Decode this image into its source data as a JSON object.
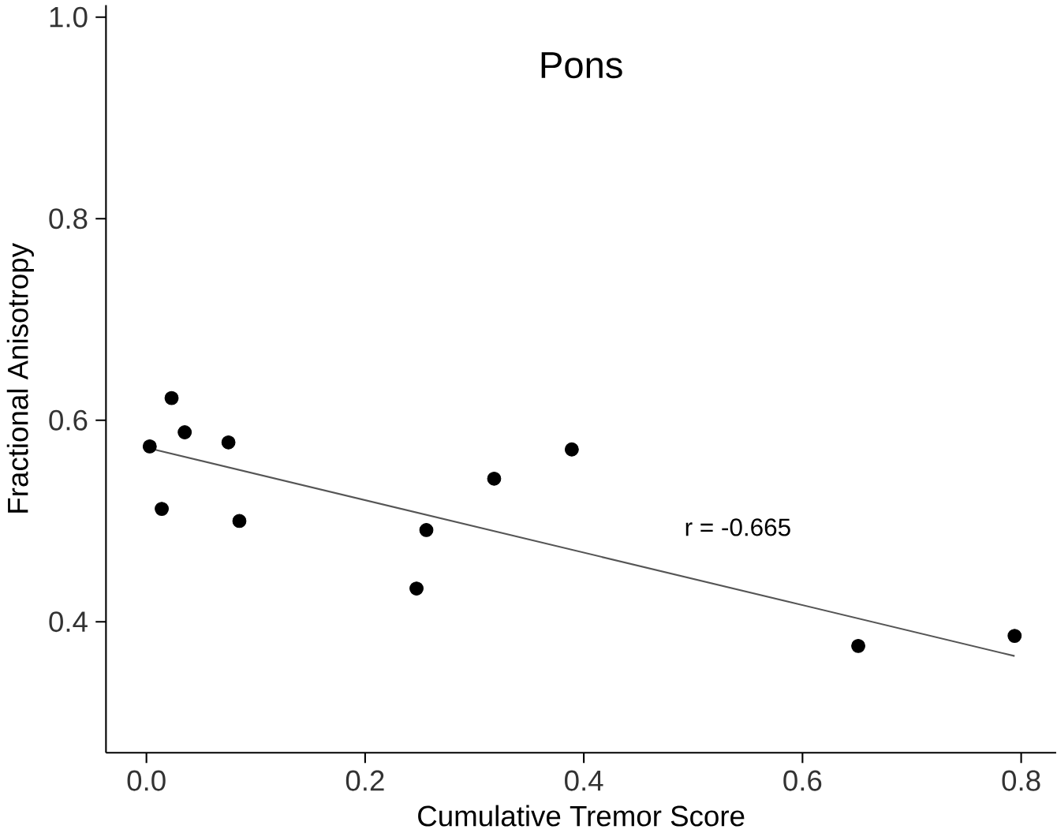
{
  "chart_data": {
    "type": "scatter",
    "title": "Pons",
    "xlabel": "Cumulative Tremor Score",
    "ylabel": "Fractional Anisotropy",
    "xlim": [
      -0.037,
      0.832
    ],
    "ylim": [
      0.27,
      1.012
    ],
    "xticks": [
      {
        "value": 0,
        "label": "0.0"
      },
      0.2,
      0.4,
      0.6,
      0.8
    ],
    "yticks": [
      0.4,
      0.6,
      0.8,
      {
        "value": 1,
        "label": "1.0"
      }
    ],
    "grid": false,
    "series": [
      {
        "marker": "circle",
        "color": "#000000",
        "x": [
          0.003,
          0.023,
          0.035,
          0.014,
          0.075,
          0.085,
          0.247,
          0.256,
          0.318,
          0.389,
          0.651,
          0.794
        ],
        "values": [
          0.574,
          0.622,
          0.588,
          0.512,
          0.578,
          0.5,
          0.433,
          0.491,
          0.542,
          0.571,
          0.376,
          0.386
        ]
      },
      {
        "type": "line",
        "color": "#555555",
        "x": [
          0.003,
          0.794
        ],
        "values": [
          0.572,
          0.366
        ]
      }
    ],
    "annotations": [
      "r = -0.665"
    ]
  }
}
